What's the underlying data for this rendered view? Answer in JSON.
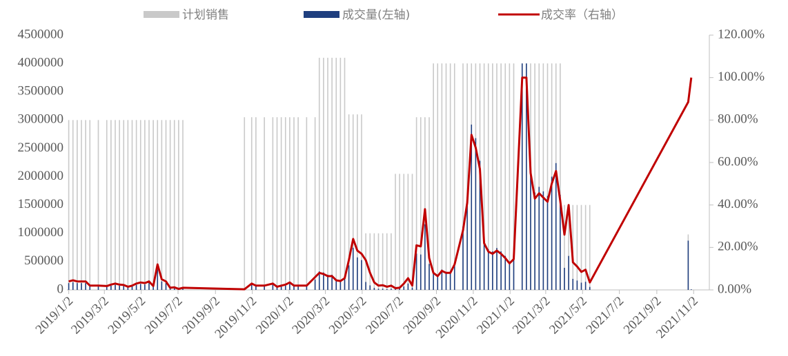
{
  "chart_data": {
    "type": "bar-line",
    "x": [
      "2019/1/2",
      "2019/1/9",
      "2019/1/16",
      "2019/1/23",
      "2019/1/30",
      "2019/2/6",
      "2019/2/20",
      "2019/3/6",
      "2019/3/13",
      "2019/3/20",
      "2019/3/27",
      "2019/4/3",
      "2019/4/10",
      "2019/4/17",
      "2019/4/24",
      "2019/5/1",
      "2019/5/8",
      "2019/5/15",
      "2019/5/22",
      "2019/5/29",
      "2019/6/5",
      "2019/6/12",
      "2019/6/19",
      "2019/6/26",
      "2019/7/3",
      "2019/7/10",
      "2019/10/20",
      "2019/11/1",
      "2019/11/8",
      "2019/11/22",
      "2019/12/6",
      "2019/12/13",
      "2019/12/20",
      "2019/12/27",
      "2020/1/3",
      "2020/1/10",
      "2020/1/17",
      "2020/1/31",
      "2020/2/14",
      "2020/2/21",
      "2020/2/28",
      "2020/3/6",
      "2020/3/13",
      "2020/3/20",
      "2020/3/27",
      "2020/4/3",
      "2020/4/10",
      "2020/4/17",
      "2020/4/24",
      "2020/5/1",
      "2020/5/8",
      "2020/5/15",
      "2020/5/22",
      "2020/5/29",
      "2020/6/5",
      "2020/6/12",
      "2020/6/19",
      "2020/6/26",
      "2020/7/3",
      "2020/7/10",
      "2020/7/17",
      "2020/7/24",
      "2020/7/31",
      "2020/8/7",
      "2020/8/14",
      "2020/8/21",
      "2020/8/28",
      "2020/9/4",
      "2020/9/11",
      "2020/9/18",
      "2020/9/25",
      "2020/10/2",
      "2020/10/16",
      "2020/10/23",
      "2020/10/30",
      "2020/11/6",
      "2020/11/13",
      "2020/11/20",
      "2020/11/27",
      "2020/12/4",
      "2020/12/11",
      "2020/12/18",
      "2020/12/25",
      "2021/1/1",
      "2021/1/8",
      "2021/1/22",
      "2021/1/29",
      "2021/2/5",
      "2021/2/12",
      "2021/2/19",
      "2021/2/26",
      "2021/3/5",
      "2021/3/12",
      "2021/3/19",
      "2021/3/26",
      "2021/4/2",
      "2021/4/9",
      "2021/4/16",
      "2021/4/23",
      "2021/4/30",
      "2021/5/7",
      "2021/5/14",
      "2021/10/24",
      "2021/10/29"
    ],
    "series": [
      {
        "name": "计划销售",
        "color": "#c9c9c9",
        "values": [
          3000000,
          3000000,
          3000000,
          3000000,
          3000000,
          3000000,
          3000000,
          3000000,
          3000000,
          3000000,
          3000000,
          3000000,
          3000000,
          3000000,
          3000000,
          3000000,
          3000000,
          3000000,
          3000000,
          3000000,
          3000000,
          3000000,
          3000000,
          3000000,
          3000000,
          3000000,
          3050000,
          3050000,
          3050000,
          3050000,
          3050000,
          3050000,
          3050000,
          3050000,
          3050000,
          3050000,
          3050000,
          3050000,
          3050000,
          4100000,
          4100000,
          4100000,
          4100000,
          4100000,
          4100000,
          4100000,
          3100000,
          3100000,
          3100000,
          3100000,
          1000000,
          1000000,
          1000000,
          1000000,
          1000000,
          1000000,
          1000000,
          2050000,
          2050000,
          2050000,
          2050000,
          2050000,
          3050000,
          3050000,
          3050000,
          3050000,
          4000000,
          4000000,
          4000000,
          4000000,
          4000000,
          4000000,
          4000000,
          4000000,
          4000000,
          4000000,
          4000000,
          4000000,
          4000000,
          4000000,
          4000000,
          4000000,
          4000000,
          4000000,
          4000000,
          4000000,
          4000000,
          4000000,
          4000000,
          4000000,
          4000000,
          4000000,
          4000000,
          4000000,
          4000000,
          1500000,
          1500000,
          1500000,
          1500000,
          1500000,
          1500000,
          1500000,
          980000,
          10000
        ]
      },
      {
        "name": "成交量(左轴)",
        "color": "#1f3f7f",
        "values": [
          120000,
          135000,
          120000,
          120000,
          120000,
          60000,
          60000,
          54000,
          75000,
          90000,
          75000,
          69000,
          45000,
          60000,
          90000,
          105000,
          96000,
          120000,
          54000,
          360000,
          150000,
          120000,
          30000,
          36000,
          15000,
          30000,
          9000,
          92000,
          61000,
          61000,
          92000,
          46000,
          61000,
          76000,
          107000,
          61000,
          61000,
          61000,
          183000,
          328000,
          308000,
          267000,
          267000,
          185000,
          172000,
          226000,
          434000,
          744000,
          574000,
          527000,
          140000,
          80000,
          35000,
          20000,
          22000,
          15000,
          20000,
          16000,
          21000,
          62000,
          113000,
          41000,
          641000,
          625000,
          1159000,
          458000,
          320000,
          260000,
          360000,
          320000,
          320000,
          480000,
          1120000,
          1640000,
          2920000,
          2680000,
          2280000,
          880000,
          720000,
          680000,
          740000,
          680000,
          600000,
          500000,
          580000,
          4000000,
          4000000,
          2200000,
          1720000,
          1820000,
          1740000,
          1660000,
          2000000,
          2240000,
          1680000,
          390000,
          600000,
          195000,
          165000,
          128000,
          143000,
          53000,
          870000,
          10000
        ]
      },
      {
        "name": "成交率（右轴）",
        "color": "#c00000",
        "axis": "y2",
        "values": [
          4,
          4.5,
          4,
          4,
          4,
          2,
          2,
          1.8,
          2.5,
          3,
          2.5,
          2.3,
          1.5,
          2,
          3,
          3.5,
          3.2,
          4,
          1.8,
          12,
          5,
          4,
          1,
          1.2,
          0.5,
          1,
          0.3,
          3,
          2,
          2,
          3,
          1.5,
          2,
          2.5,
          3.5,
          2,
          2,
          2,
          6,
          8,
          7.5,
          6.5,
          6.5,
          4.5,
          4.2,
          5.5,
          14,
          24,
          18.5,
          17,
          14,
          8,
          3.5,
          2,
          2.2,
          1.5,
          2,
          0.8,
          1,
          3,
          5.5,
          2,
          21,
          20.5,
          38,
          15,
          8,
          6.5,
          9,
          8,
          8,
          12,
          28,
          41,
          73,
          67,
          57,
          22,
          18,
          17,
          18.5,
          17,
          15,
          12.5,
          14.5,
          100,
          100,
          55,
          43,
          45.5,
          43.5,
          41.5,
          50,
          56,
          42,
          26,
          40,
          13,
          11,
          8.5,
          9.5,
          3.5,
          88.5,
          100
        ]
      }
    ],
    "xlim": [
      "2018/12/30",
      "2021/11/28"
    ],
    "xticks": [
      "2019/1/2",
      "2019/3/2",
      "2019/5/2",
      "2019/7/2",
      "2019/9/2",
      "2019/11/2",
      "2020/1/2",
      "2020/3/2",
      "2020/5/2",
      "2020/7/2",
      "2020/9/2",
      "2020/11/2",
      "2021/1/2",
      "2021/3/2",
      "2021/5/2",
      "2021/7/2",
      "2021/9/2",
      "2021/11/2"
    ],
    "ylim": [
      0,
      4500000
    ],
    "yticks": [
      0,
      500000,
      1000000,
      1500000,
      2000000,
      2500000,
      3000000,
      3500000,
      4000000,
      4500000
    ],
    "y2lim": [
      0,
      120
    ],
    "y2ticks": [
      {
        "value": 0,
        "label": "0.00%"
      },
      {
        "value": 20,
        "label": "20.00%"
      },
      {
        "value": 40,
        "label": "40.00%"
      },
      {
        "value": 60,
        "label": "60.00%"
      },
      {
        "value": 80,
        "label": "80.00%"
      },
      {
        "value": 100,
        "label": "100.00%"
      },
      {
        "value": 120,
        "label": "120.00%"
      }
    ],
    "legend": "top",
    "grid": false
  }
}
